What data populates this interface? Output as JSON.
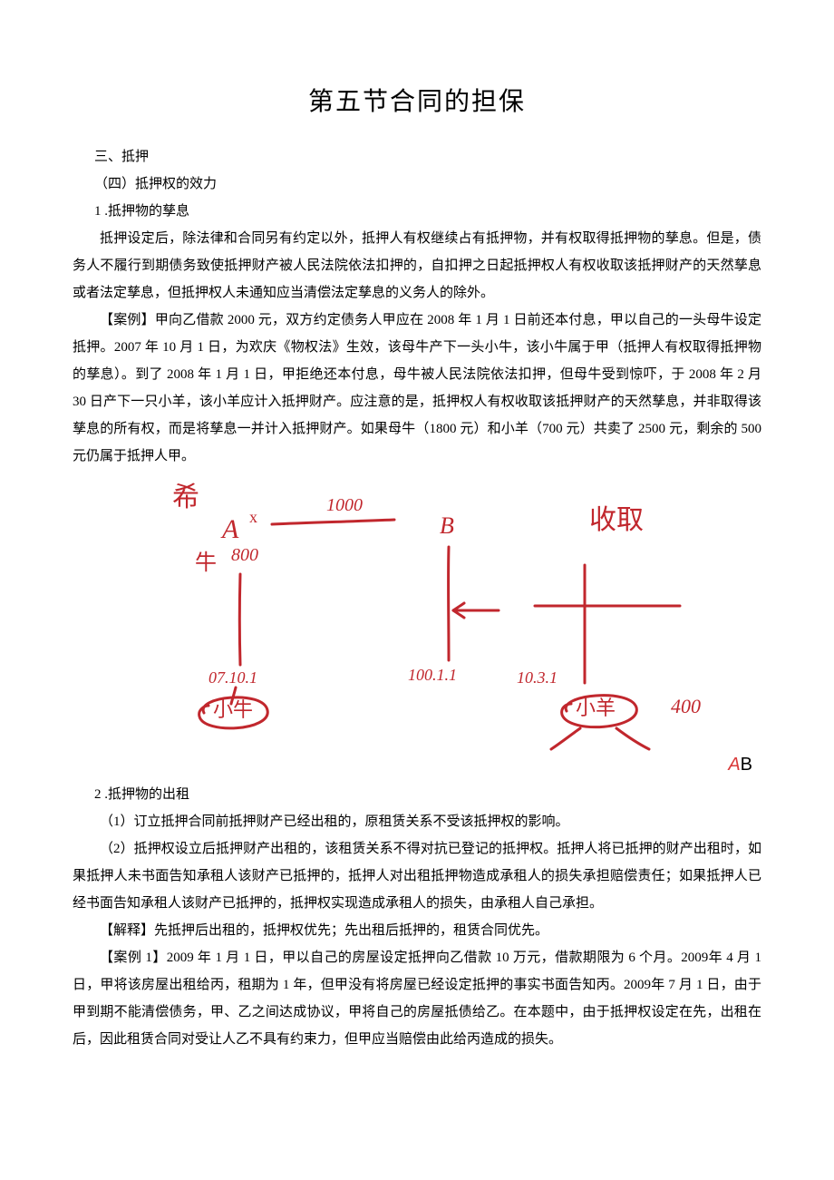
{
  "title": "第五节合同的担保",
  "section_num": "三、抵押",
  "subsection": "（四）抵押权的效力",
  "item1_num": "1 .抵押物的孳息",
  "para1": "抵押设定后，除法律和合同另有约定以外，抵押人有权继续占有抵押物，并有权取得抵押物的孳息。但是，债务人不履行到期债务致使抵押财产被人民法院依法扣押的，自扣押之日起抵押权人有权收取该抵押财产的天然孳息或者法定孳息，但抵押权人未通知应当清偿法定孳息的义务人的除外。",
  "para2": "【案例】甲向乙借款 2000 元，双方约定债务人甲应在 2008 年 1 月 1 日前还本付息，甲以自己的一头母牛设定抵押。2007 年 10 月 1 日，为欢庆《物权法》生效，该母牛产下一头小牛，该小牛属于甲（抵押人有权取得抵押物的孳息）。到了 2008 年 1 月 1 日，甲拒绝还本付息，母牛被人民法院依法扣押，但母牛受到惊吓，于 2008 年 2 月 30 日产下一只小羊，该小羊应计入抵押财产。应注意的是，抵押权人有权收取该抵押财产的天然孳息，并非取得该孳息的所有权，而是将孳息一并计入抵押财产。如果母牛（1800 元）和小羊（700 元）共卖了 2500 元，剩余的 500 元仍属于抵押人甲。",
  "diagram": {
    "stroke": "#c1272d",
    "stroke_width": 3,
    "font_family": "cursive",
    "labels": {
      "xi": "希",
      "A": "A",
      "x": "x",
      "top_num": "1000",
      "B": "B",
      "shouqu": "收取",
      "niu": "牛",
      "v800": "800",
      "date1": "07.10.1",
      "date2": "100.1.1",
      "date3": "10.3.1",
      "xiaoniu": "小牛",
      "xiaoyang": "小羊",
      "v400": "400"
    }
  },
  "label_AB_A": "A",
  "label_AB_B": "B",
  "item2_num": "2 .抵押物的出租",
  "sub1": "（1）订立抵押合同前抵押财产已经出租的，原租赁关系不受该抵押权的影响。",
  "sub2": "（2）抵押权设立后抵押财产出租的，该租赁关系不得对抗已登记的抵押权。抵押人将已抵押的财产出租时，如果抵押人未书面告知承租人该财产已抵押的，抵押人对出租抵押物造成承租人的损失承担赔偿责任；如果抵押人已经书面告知承租人该财产已抵押的，抵押权实现造成承租人的损失，由承租人自己承担。",
  "para3": "【解释】先抵押后出租的，抵押权优先；先出租后抵押的，租赁合同优先。",
  "para4": "【案例 1】2009 年 1 月 1 日，甲以自己的房屋设定抵押向乙借款 10 万元，借款期限为 6 个月。2009年 4 月 1 日，甲将该房屋出租给丙，租期为 1 年，但甲没有将房屋已经设定抵押的事实书面告知丙。2009年 7 月 1 日，由于甲到期不能清偿债务，甲、乙之间达成协议，甲将自己的房屋抵债给乙。在本题中，由于抵押权设定在先，出租在后，因此租赁合同对受让人乙不具有约束力，但甲应当赔偿由此给丙造成的损失。"
}
